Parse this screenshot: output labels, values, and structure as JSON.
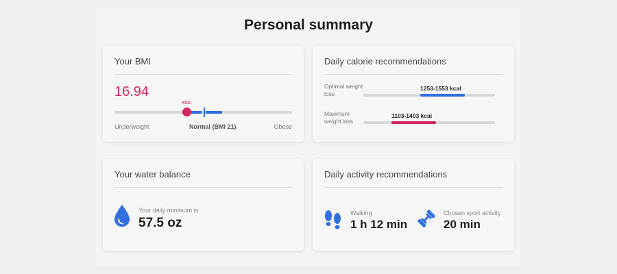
{
  "page": {
    "title": "Personal summary"
  },
  "bmi": {
    "title": "Your BMI",
    "value": "16.94",
    "marker_label": "YOU",
    "labels": {
      "low": "Underweight",
      "normal": "Normal (BMI 21)",
      "high": "Obese"
    }
  },
  "calories": {
    "title": "Daily calorie recommendations",
    "rows": [
      {
        "label": "Optimal weight loss",
        "range": "1253-1553 kcal",
        "color": "#2f6fe0"
      },
      {
        "label": "Maximum weight loss",
        "range": "1103-1403 kcal",
        "color": "#d0275f"
      }
    ]
  },
  "water": {
    "title": "Your water balance",
    "caption": "Your daily minimum is",
    "value": "57.5 oz",
    "icon": "water-drop-icon"
  },
  "activity": {
    "title": "Daily activity recommendations",
    "items": [
      {
        "caption": "Walking",
        "value": "1 h 12 min",
        "icon": "footprints-icon"
      },
      {
        "caption": "Chosen sport activity",
        "value": "20 min",
        "icon": "dumbbell-icon"
      }
    ]
  },
  "colors": {
    "accent_blue": "#2f6fe0",
    "accent_pink": "#d0275f"
  }
}
